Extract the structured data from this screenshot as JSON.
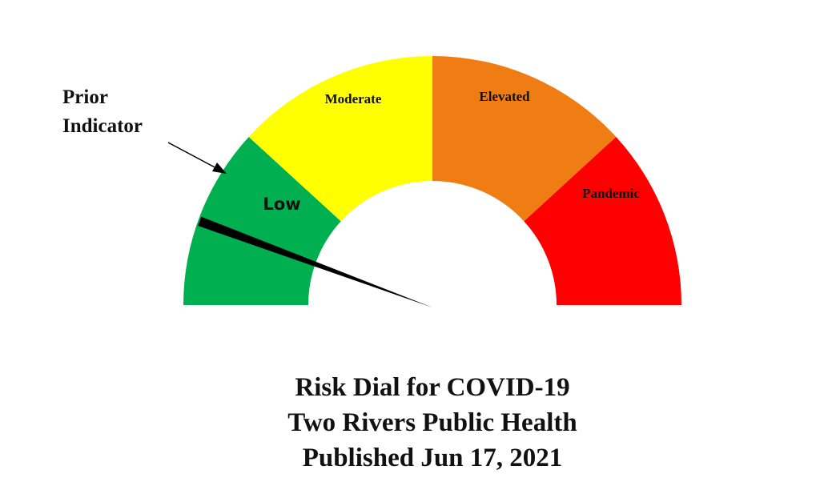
{
  "chart_data": {
    "type": "gauge",
    "title_lines": [
      "Risk Dial for COVID-19",
      "Two Rivers Public Health",
      "Published Jun 17, 2021"
    ],
    "range": [
      0,
      1
    ],
    "segments": [
      {
        "label": "Low",
        "from": 0,
        "to": 0.236,
        "color": "#00b050"
      },
      {
        "label": "Moderate",
        "from": 0.236,
        "to": 0.5,
        "color": "#ffff00"
      },
      {
        "label": "Elevated",
        "from": 0.5,
        "to": 0.764,
        "color": "#f07c14"
      },
      {
        "label": "Pandemic",
        "from": 0.764,
        "to": 1,
        "color": "#ff0000"
      }
    ],
    "needle_value": 0.11,
    "needle_color": "#000000",
    "annotation": {
      "line1": "Prior",
      "line2": "Indicator",
      "points_to_value": 0.236
    }
  }
}
